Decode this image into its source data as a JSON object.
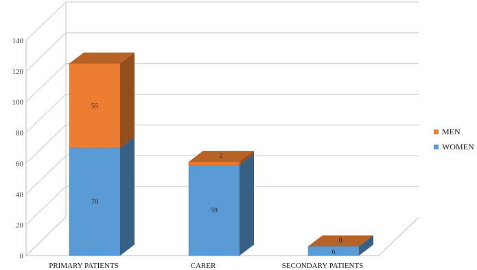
{
  "chart_data": {
    "type": "bar",
    "stacked": true,
    "three_d": true,
    "categories": [
      "PRIMARY PATIENTS",
      "CARER",
      "SECONDARY PATIENTS"
    ],
    "series": [
      {
        "name": "WOMEN",
        "values": [
          70,
          59,
          6
        ],
        "labels": [
          "70",
          "59",
          "6"
        ],
        "color": "#5b9bd5"
      },
      {
        "name": "MEN",
        "values": [
          55,
          2,
          0
        ],
        "labels": [
          "55",
          "2",
          "0"
        ],
        "color": "#ed7d31"
      }
    ],
    "yticks": [
      "0",
      "20",
      "40",
      "60",
      "80",
      "100",
      "120",
      "140"
    ],
    "ylim": [
      0,
      140
    ],
    "grid": true,
    "legend_position": "right"
  }
}
